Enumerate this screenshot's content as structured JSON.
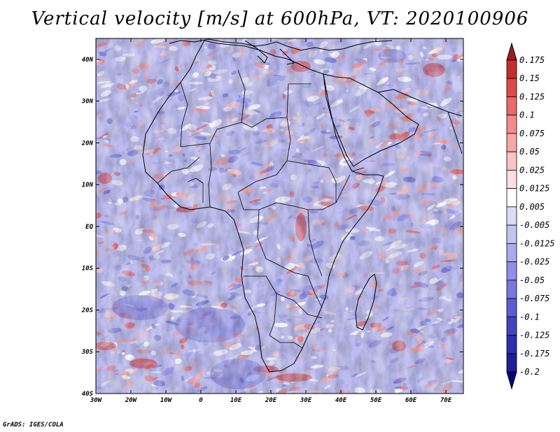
{
  "title": "Vertical velocity [m/s] at 600hPa, VT: 2020100906",
  "footer": "GrADS: IGES/COLA",
  "map": {
    "lon_range": [
      -30,
      75
    ],
    "lat_range": [
      -40,
      45
    ],
    "lon_ticks": [
      "30W",
      "20W",
      "10W",
      "0",
      "10E",
      "20E",
      "30E",
      "40E",
      "50E",
      "60E",
      "70E"
    ],
    "lat_ticks": [
      "40N",
      "30N",
      "20N",
      "10N",
      "EQ",
      "10S",
      "20S",
      "30S",
      "40S"
    ]
  },
  "colorbar": {
    "labels": [
      "0.175",
      "0.15",
      "0.125",
      "0.1",
      "0.075",
      "0.05",
      "0.025",
      "0.0125",
      "0.005",
      "-0.005",
      "-0.0125",
      "-0.025",
      "-0.05",
      "-0.075",
      "-0.1",
      "-0.125",
      "-0.175",
      "-0.2"
    ],
    "colors": [
      "#a01c1c",
      "#c42e2e",
      "#dc4a4a",
      "#ea6a6a",
      "#f28c8c",
      "#f6a8a8",
      "#f9c4c4",
      "#fcdede",
      "#ffffff",
      "#dcdcf8",
      "#c4c4f2",
      "#aaaaee",
      "#9090e8",
      "#7878de",
      "#5c5cd2",
      "#4444c2",
      "#2e2eae",
      "#1e1e96",
      "#100080"
    ]
  }
}
